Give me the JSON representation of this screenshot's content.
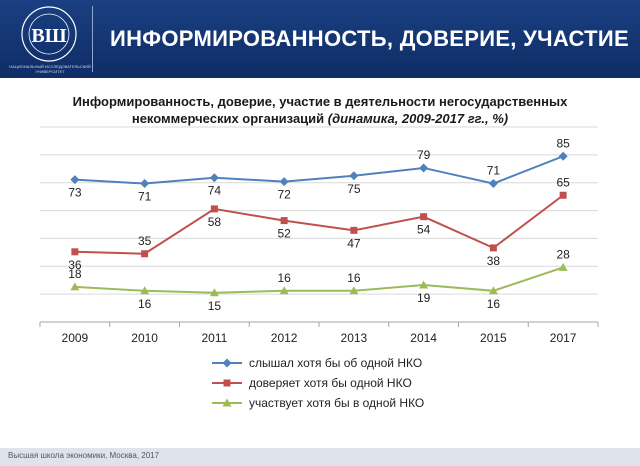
{
  "header": {
    "title": "ИНФОРМИРОВАННОСТЬ, ДОВЕРИЕ, УЧАСТИЕ",
    "logo_caption": "НАЦИОНАЛЬНЫЙ ИССЛЕДОВАТЕЛЬСКИЙ УНИВЕРСИТЕТ",
    "logo_ring_text": "ВЫСШАЯ ШКОЛА ЭКОНОМИКИ",
    "colors": {
      "banner": "#173a7a"
    }
  },
  "chart_data": {
    "type": "line",
    "title_main": "Информированность, доверие, участие  в деятельности негосударственных",
    "title_line2": "некоммерческих организаций",
    "title_sub": "(динамика, 2009-2017 гг., %)",
    "categories": [
      "2009",
      "2010",
      "2011",
      "2012",
      "2013",
      "2014",
      "2015",
      "2017"
    ],
    "ylim": [
      0,
      100
    ],
    "grid": true,
    "legend_position": "bottom",
    "series": [
      {
        "name": "слышал хотя бы об одной НКО",
        "values": [
          73,
          71,
          74,
          72,
          75,
          79,
          71,
          85
        ],
        "color": "#4f81bd",
        "marker": "diamond"
      },
      {
        "name": "доверяет хотя бы одной НКО",
        "values": [
          36,
          35,
          58,
          52,
          47,
          54,
          38,
          65
        ],
        "color": "#c0504d",
        "marker": "square"
      },
      {
        "name": "участвует хотя бы в одной НКО",
        "values": [
          18,
          16,
          15,
          16,
          16,
          19,
          16,
          28
        ],
        "color": "#9bbb59",
        "marker": "triangle"
      }
    ]
  },
  "footer": {
    "text": "Высшая школа экономики, Москва, 2017"
  }
}
